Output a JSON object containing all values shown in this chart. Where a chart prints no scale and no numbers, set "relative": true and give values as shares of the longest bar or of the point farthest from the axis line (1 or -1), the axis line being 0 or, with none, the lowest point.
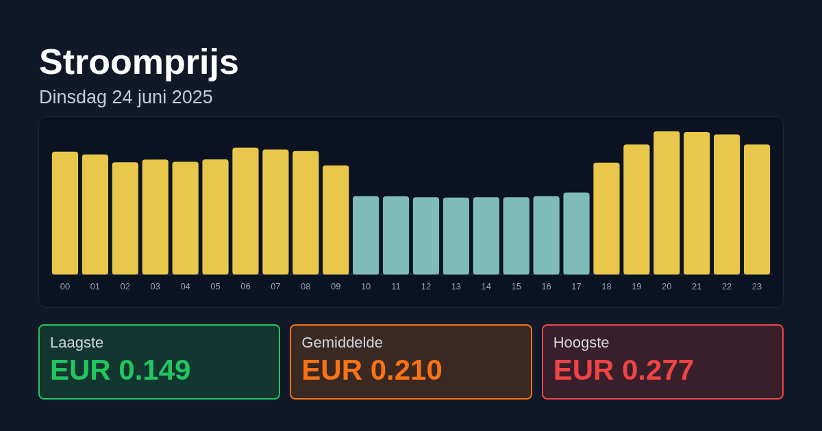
{
  "chart_data": [
    {
      "type": "bar",
      "title": "Stroomprijs",
      "subtitle": "Dinsdag 24 juni 2025",
      "relative": true,
      "categories": [
        "00",
        "01",
        "02",
        "03",
        "04",
        "05",
        "06",
        "07",
        "08",
        "09",
        "10",
        "11",
        "12",
        "13",
        "14",
        "15",
        "16",
        "17",
        "18",
        "19",
        "20",
        "21",
        "22",
        "23"
      ],
      "values": [
        0.858,
        0.839,
        0.784,
        0.803,
        0.788,
        0.804,
        0.887,
        0.874,
        0.863,
        0.763,
        0.548,
        0.546,
        0.54,
        0.538,
        0.54,
        0.54,
        0.548,
        0.572,
        0.781,
        0.908,
        1,
        0.995,
        0.979,
        0.908
      ],
      "colors": [
        "#e8c74a",
        "#e8c74a",
        "#e8c74a",
        "#e8c74a",
        "#e8c74a",
        "#e8c74a",
        "#e8c74a",
        "#e8c74a",
        "#e8c74a",
        "#e8c74a",
        "#7fbbbb",
        "#7fbbbb",
        "#7fbbbb",
        "#7fbbbb",
        "#7fbbbb",
        "#7fbbbb",
        "#7fbbbb",
        "#7fbbbb",
        "#e8c74a",
        "#e8c74a",
        "#e8c74a",
        "#e8c74a",
        "#e8c74a",
        "#e8c74a"
      ]
    },
    {
      "type": "other",
      "title": "Laagste",
      "annotations": [
        "EUR 0.149"
      ],
      "color": "#22c55e"
    },
    {
      "type": "other",
      "title": "Gemiddelde",
      "annotations": [
        "EUR 0.210"
      ],
      "color": "#f97316"
    },
    {
      "type": "other",
      "title": "Hoogste",
      "annotations": [
        "EUR 0.277"
      ],
      "color": "#ef4444"
    }
  ]
}
